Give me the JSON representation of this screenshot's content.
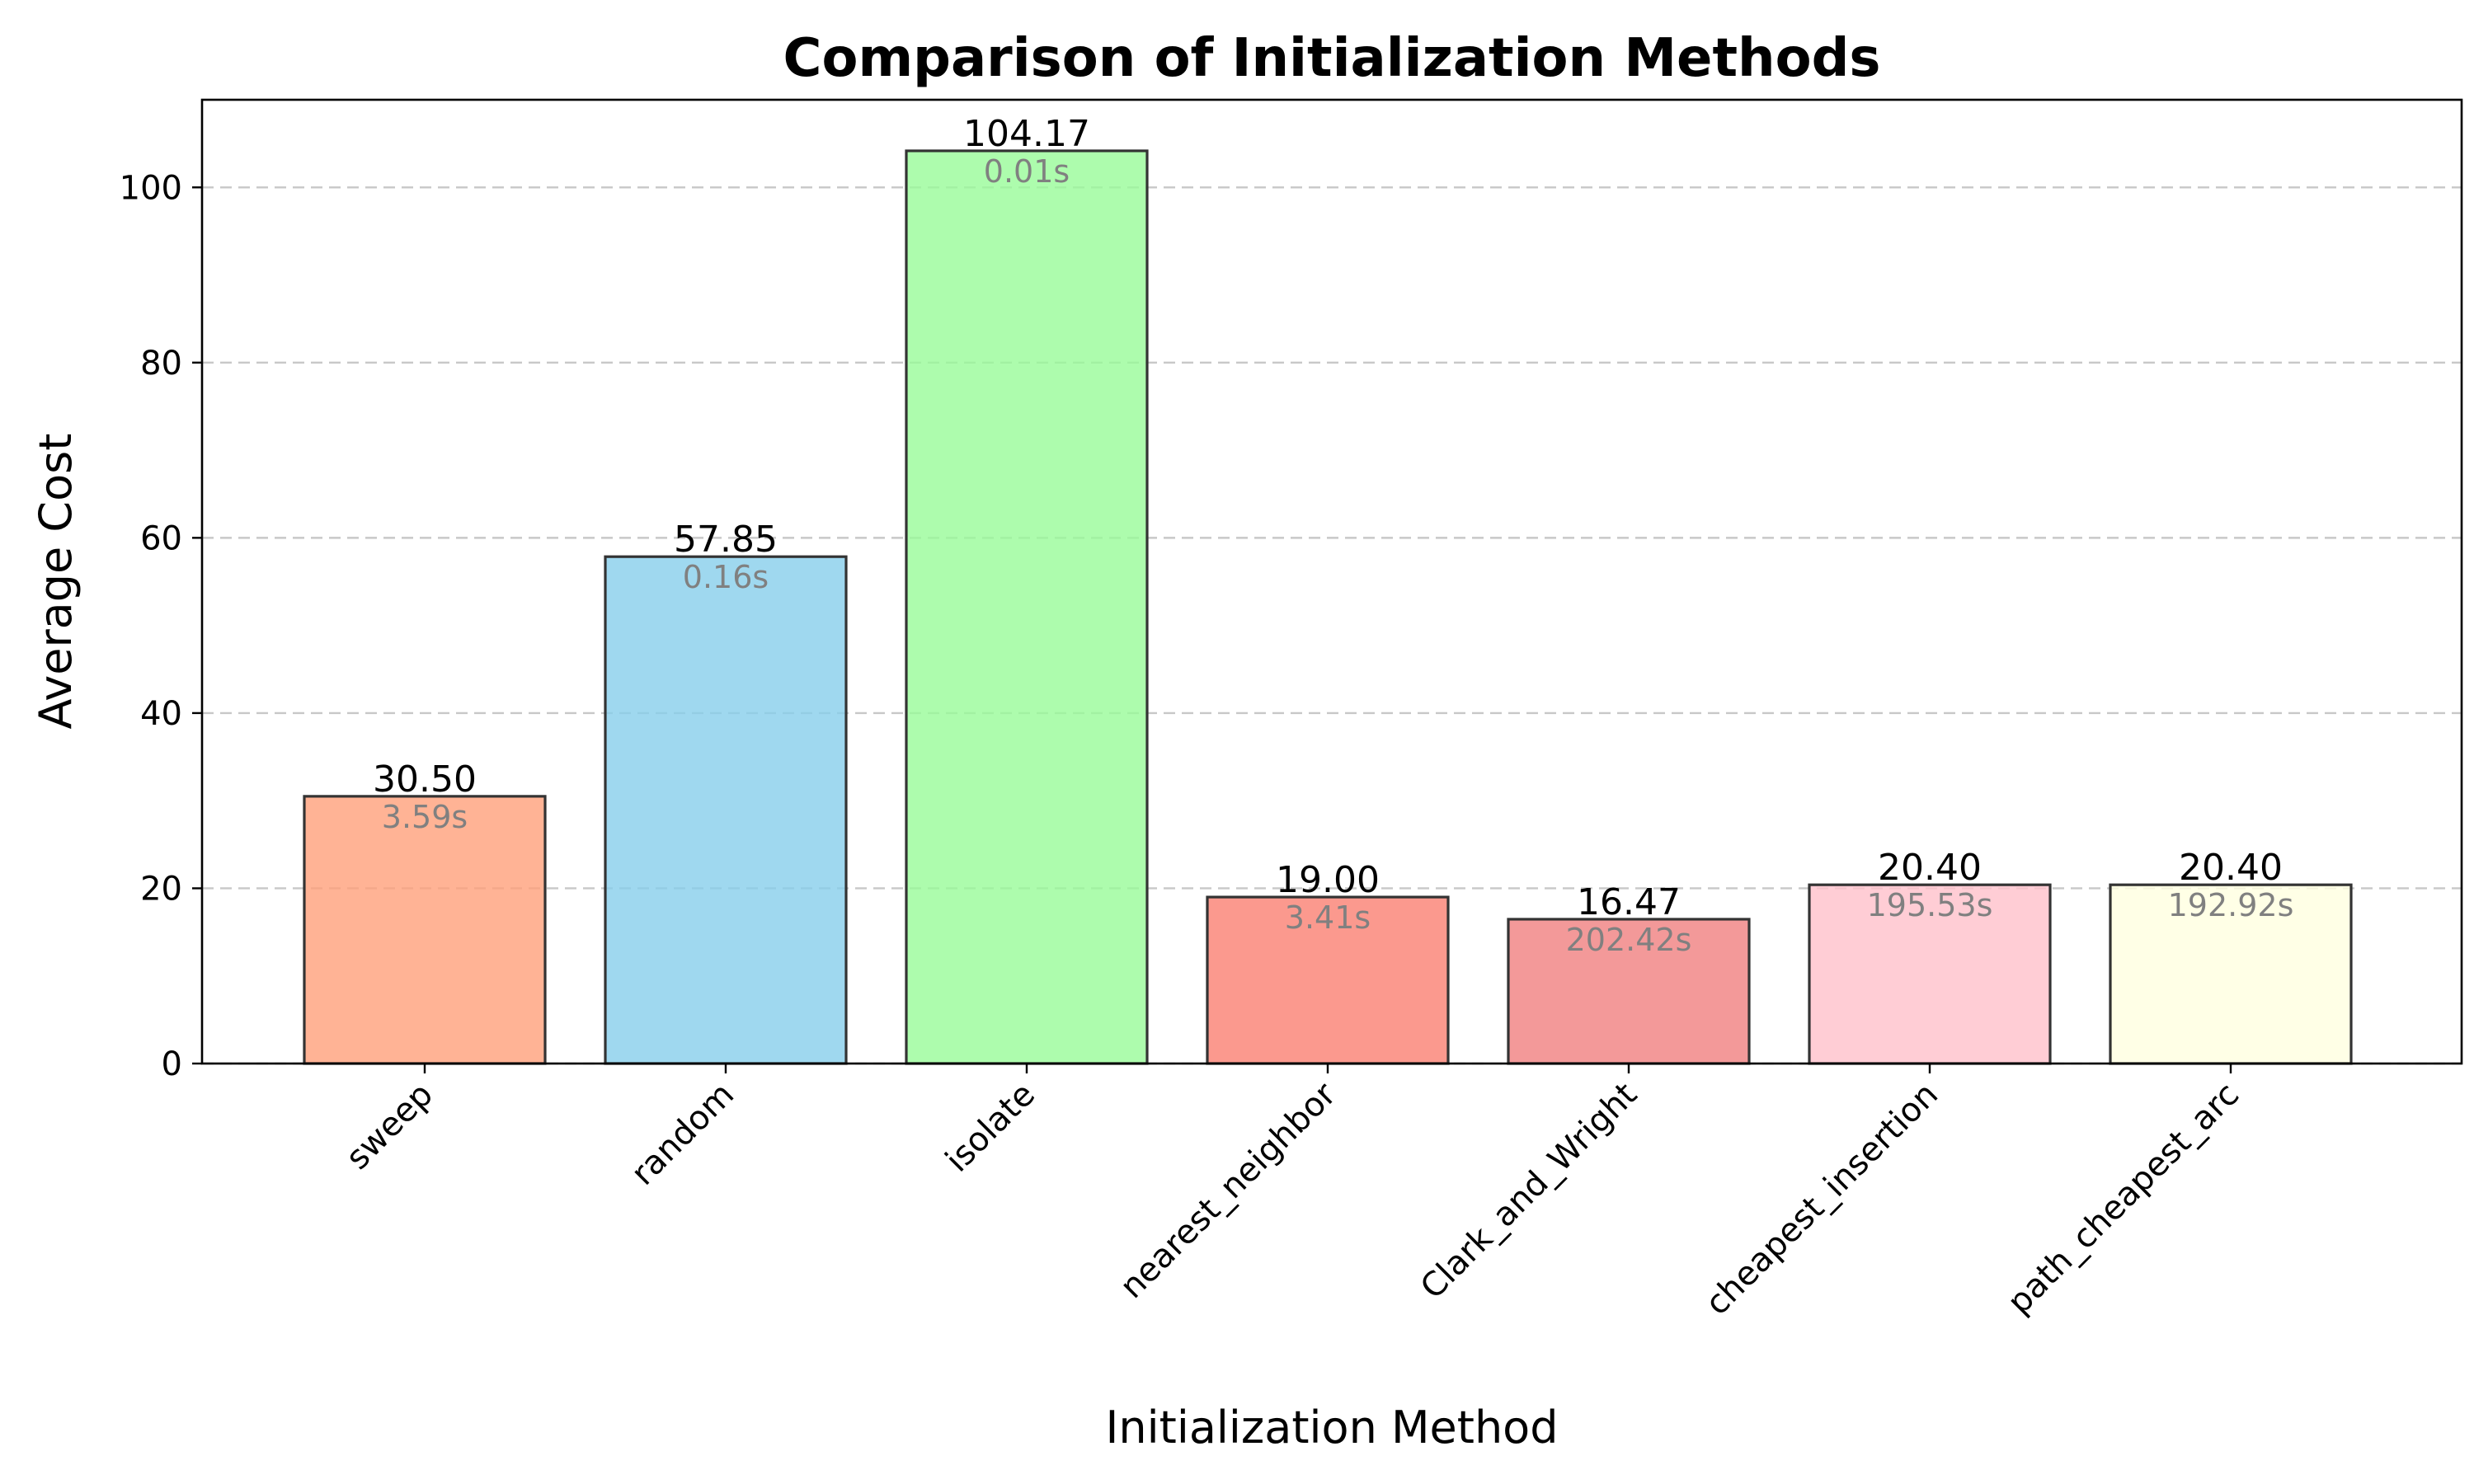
{
  "chart_data": {
    "type": "bar",
    "title": "Comparison of Initialization Methods",
    "xlabel": "Initialization Method",
    "ylabel": "Average Cost",
    "ylim": [
      0,
      110
    ],
    "yticks": [
      0,
      20,
      40,
      60,
      80,
      100
    ],
    "grid": "y-dashed",
    "categories": [
      "sweep",
      "random",
      "isolate",
      "nearest_neighbor",
      "Clark_and_Wright",
      "cheapest_insertion",
      "path_cheapest_arc"
    ],
    "values": [
      30.5,
      57.85,
      104.17,
      19.0,
      16.47,
      20.4,
      20.4
    ],
    "value_labels": [
      "30.50",
      "57.85",
      "104.17",
      "19.00",
      "16.47",
      "20.40",
      "20.40"
    ],
    "time_labels": [
      "3.59s",
      "0.16s",
      "0.01s",
      "3.41s",
      "202.42s",
      "195.53s",
      "192.92s"
    ],
    "colors": [
      "#ffa07a",
      "#87ceeb",
      "#98fb98",
      "#fa8072",
      "#f08080",
      "#ffc0cb",
      "#ffffe0"
    ]
  }
}
